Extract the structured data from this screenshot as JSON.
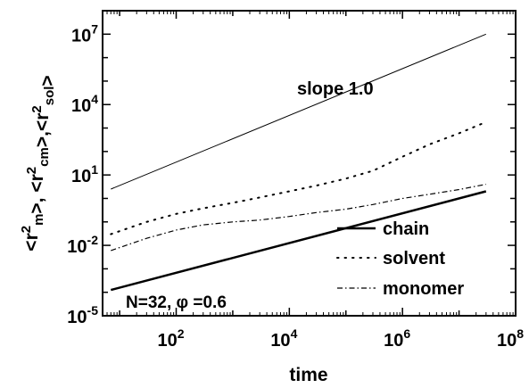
{
  "chart_data": {
    "type": "line",
    "xlabel": "time",
    "ylabel": "<r2m>, <r2cm>,<r2sol>",
    "ylabel_parts": [
      {
        "t": "<r",
        "sup": false,
        "sub": false
      },
      {
        "t": "2",
        "sup": true,
        "sub": false
      },
      {
        "t": "m",
        "sup": false,
        "sub": true
      },
      {
        "t": ">, <r",
        "sup": false,
        "sub": false
      },
      {
        "t": "2",
        "sup": true,
        "sub": false
      },
      {
        "t": "cm",
        "sup": false,
        "sub": true
      },
      {
        "t": ">,<r",
        "sup": false,
        "sub": false
      },
      {
        "t": "2",
        "sup": true,
        "sub": false
      },
      {
        "t": "sol",
        "sup": false,
        "sub": true
      },
      {
        "t": ">",
        "sup": false,
        "sub": false
      }
    ],
    "x_scale": "log",
    "y_scale": "log",
    "xlim": [
      5,
      100000000
    ],
    "ylim": [
      1e-05,
      100000000
    ],
    "x_ticks": [
      {
        "value": 100,
        "base": "10",
        "exp": "2"
      },
      {
        "value": 10000,
        "base": "10",
        "exp": "4"
      },
      {
        "value": 1000000,
        "base": "10",
        "exp": "6"
      },
      {
        "value": 100000000,
        "base": "10",
        "exp": "8"
      }
    ],
    "y_ticks": [
      {
        "value": 1e-05,
        "base": "10",
        "exp": "-5"
      },
      {
        "value": 0.01,
        "base": "10",
        "exp": "-2"
      },
      {
        "value": 10,
        "base": "10",
        "exp": "1"
      },
      {
        "value": 10000,
        "base": "10",
        "exp": "4"
      },
      {
        "value": 10000000,
        "base": "10",
        "exp": "7"
      }
    ],
    "grid": false,
    "legend_position": "lower-right",
    "series": [
      {
        "name": "chain",
        "style": "solid-thick",
        "color": "#000000",
        "x": [
          7,
          30000000
        ],
        "y": [
          0.000125,
          2
        ]
      },
      {
        "name": "solvent",
        "style": "dotted",
        "color": "#000000",
        "x": [
          7,
          30,
          100,
          300,
          1000,
          3000,
          10000,
          30000,
          100000,
          300000,
          1000000,
          3000000,
          10000000,
          30000000
        ],
        "y": [
          0.03,
          0.1,
          0.22,
          0.38,
          0.65,
          1.1,
          2.0,
          3.5,
          7,
          15,
          60,
          200,
          600,
          1800
        ]
      },
      {
        "name": "monomer",
        "style": "dash-dot",
        "color": "#000000",
        "x": [
          7,
          30,
          100,
          300,
          1000,
          3000,
          10000,
          30000,
          100000,
          300000,
          1000000,
          3000000,
          10000000,
          30000000
        ],
        "y": [
          0.006,
          0.02,
          0.045,
          0.075,
          0.1,
          0.12,
          0.17,
          0.25,
          0.35,
          0.55,
          1.0,
          1.5,
          2.4,
          4
        ]
      }
    ],
    "reference_line": {
      "label": "slope 1.0",
      "style": "solid-thin",
      "x": [
        7,
        30000000
      ],
      "y": [
        2.5,
        10000000
      ]
    },
    "annotation": {
      "label": "N=32,  φ =0.6"
    }
  }
}
